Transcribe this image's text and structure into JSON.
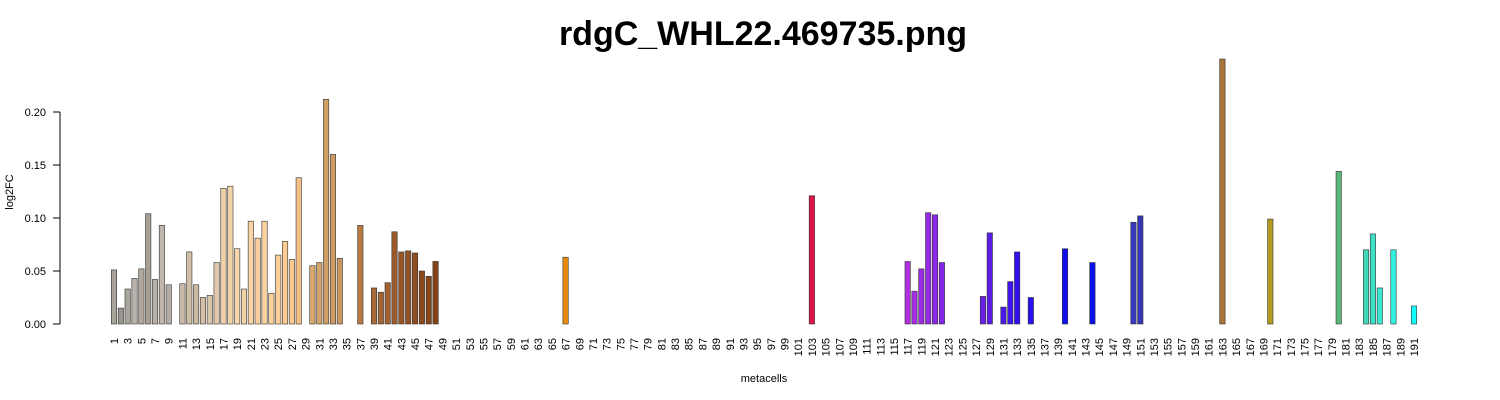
{
  "chart_data": {
    "type": "bar",
    "title": "rdgC_WHL22.469735.png",
    "x_label": "metacells",
    "y_label": "log2FC",
    "categories": [
      "1",
      null,
      "3",
      null,
      "5",
      null,
      "7",
      null,
      "9",
      null,
      "11",
      null,
      "13",
      null,
      "15",
      null,
      "17",
      null,
      "19",
      null,
      "21",
      null,
      "23",
      null,
      "25",
      null,
      "27",
      null,
      "29",
      null,
      "31",
      null,
      "33",
      null,
      "35",
      null,
      "37",
      null,
      "39",
      null,
      "41",
      null,
      "43",
      null,
      "45",
      null,
      "47",
      null,
      "49",
      null,
      "51",
      null,
      "53",
      null,
      "55",
      null,
      "57",
      null,
      "59",
      null,
      "61",
      null,
      "63",
      null,
      "65",
      null,
      "67",
      null,
      "69",
      null,
      "71",
      null,
      "73",
      null,
      "75",
      null,
      "77",
      null,
      "79",
      null,
      "81",
      null,
      "83",
      null,
      "85",
      null,
      "87",
      null,
      "89",
      null,
      "91",
      null,
      "93",
      null,
      "95",
      null,
      "97",
      null,
      "99",
      null,
      "101",
      null,
      "103",
      null,
      "105",
      null,
      "107",
      null,
      "109",
      null,
      "111",
      null,
      "113",
      null,
      "115",
      null,
      "117",
      null,
      "119",
      null,
      "121",
      null,
      "123",
      null,
      "125",
      null,
      "127",
      null,
      "129",
      null,
      "131",
      null,
      "133",
      null,
      "135",
      null,
      "137",
      null,
      "139",
      null,
      "141",
      null,
      "143",
      null,
      "145",
      null,
      "147",
      null,
      "149",
      null,
      "151",
      null,
      "153",
      null,
      "155",
      null,
      "157",
      null,
      "159",
      null,
      "161",
      null,
      "163",
      null,
      "165",
      null,
      "167",
      null,
      "169",
      null,
      "171",
      null,
      "173",
      null,
      "175",
      null,
      "177",
      null,
      "179",
      null,
      "181",
      null,
      "183",
      null,
      "185",
      null,
      "187",
      null,
      "189",
      null,
      "191"
    ],
    "values": [
      0.051,
      0.015,
      0.033,
      0.043,
      0.052,
      0.104,
      0.042,
      0.093,
      0.037,
      0,
      0.038,
      0.068,
      0.037,
      0.025,
      0.027,
      0.058,
      0.128,
      0.13,
      0.071,
      0.033,
      0.097,
      0.081,
      0.097,
      0.029,
      0.065,
      0.078,
      0.061,
      0.138,
      0,
      0.055,
      0.058,
      0.212,
      0.16,
      0.062,
      0,
      0,
      0.093,
      0,
      0.034,
      0.03,
      0.039,
      0.087,
      0.068,
      0.069,
      0.067,
      0.05,
      0.045,
      0.059,
      0,
      0,
      0,
      0,
      0,
      0,
      0,
      0,
      0,
      0,
      0,
      0,
      0,
      0,
      0,
      0,
      0,
      0,
      0.063,
      0,
      0,
      0,
      0,
      0,
      0,
      0,
      0,
      0,
      0,
      0,
      0,
      0,
      0,
      0,
      0,
      0,
      0,
      0,
      0,
      0,
      0,
      0,
      0,
      0,
      0,
      0,
      0,
      0,
      0,
      0,
      0,
      0,
      0,
      0,
      0.121,
      0,
      0,
      0,
      0,
      0,
      0,
      0,
      0,
      0,
      0,
      0,
      0,
      0,
      0.059,
      0.031,
      0.052,
      0.105,
      0.103,
      0.058,
      0,
      0,
      0,
      0,
      0,
      0.026,
      0.086,
      0,
      0.016,
      0.04,
      0.068,
      0,
      0.025,
      0,
      0,
      0,
      0,
      0.071,
      0,
      0,
      0,
      0.058,
      0,
      0,
      0,
      0,
      0,
      0.096,
      0.102,
      0,
      0,
      0,
      0,
      0,
      0,
      0,
      0,
      0,
      0,
      0,
      0.25,
      0,
      0,
      0,
      0,
      0,
      0,
      0.099,
      0,
      0,
      0,
      0,
      0,
      0,
      0,
      0,
      0,
      0.144,
      0,
      0,
      0,
      0.07,
      0.085,
      0.034,
      0,
      0.07,
      0,
      0,
      0.017
    ],
    "colors": [
      "#a9a49c",
      "#9a958e",
      "#aaa49e",
      "#b8b2aa",
      "#b0a89e",
      "#a8a096",
      "#bab2a8",
      "#c0b6ab",
      "#b5ada4",
      "#888",
      "#c8b8a4",
      "#d0bea6",
      "#cbb9a2",
      "#d4c0a8",
      "#d8c4aa",
      "#e0c8a8",
      "#f0d0a8",
      "#f2d4aa",
      "#f4d6ae",
      "#f0d2a6",
      "#f6d4a4",
      "#f8d0a0",
      "#fad2a0",
      "#fbd09a",
      "#fcce98",
      "#fccc94",
      "#fcc890",
      "#f4c088",
      "#888",
      "#d8a870",
      "#d4a46c",
      "#d0a068",
      "#cc9c64",
      "#c89860",
      "#888",
      "#888",
      "#b87a40",
      "#888",
      "#a86a38",
      "#a46434",
      "#a06030",
      "#9a5a2c",
      "#965628",
      "#925224",
      "#8e4e20",
      "#8a4a1c",
      "#864618",
      "#824214",
      "#888",
      "#888",
      "#888",
      "#888",
      "#888",
      "#888",
      "#888",
      "#888",
      "#888",
      "#888",
      "#888",
      "#888",
      "#888",
      "#888",
      "#888",
      "#888",
      "#888",
      "#888",
      "#e88a10",
      "#888",
      "#888",
      "#888",
      "#888",
      "#888",
      "#888",
      "#888",
      "#888",
      "#888",
      "#888",
      "#888",
      "#888",
      "#888",
      "#888",
      "#888",
      "#888",
      "#888",
      "#888",
      "#888",
      "#888",
      "#888",
      "#888",
      "#888",
      "#888",
      "#888",
      "#888",
      "#888",
      "#888",
      "#888",
      "#888",
      "#888",
      "#888",
      "#888",
      "#888",
      "#888",
      "#dc1448",
      "#888",
      "#888",
      "#888",
      "#888",
      "#888",
      "#888",
      "#888",
      "#888",
      "#888",
      "#888",
      "#888",
      "#888",
      "#888",
      "#b030e0",
      "#a52ee2",
      "#9c2ce4",
      "#942ae6",
      "#8c28e8",
      "#8426ea",
      "#888",
      "#888",
      "#888",
      "#888",
      "#888",
      "#6a20e8",
      "#5c1ce8",
      "#888",
      "#4c18ea",
      "#4014ec",
      "#3410ee",
      "#888",
      "#2810f0",
      "#888",
      "#888",
      "#888",
      "#888",
      "#1010ee",
      "#888",
      "#888",
      "#888",
      "#0a10ee",
      "#888",
      "#888",
      "#888",
      "#888",
      "#888",
      "#3838c0",
      "#3434b8",
      "#888",
      "#888",
      "#888",
      "#888",
      "#888",
      "#888",
      "#888",
      "#888",
      "#888",
      "#888",
      "#888",
      "#a87438",
      "#888",
      "#888",
      "#888",
      "#888",
      "#888",
      "#888",
      "#b49a20",
      "#888",
      "#888",
      "#888",
      "#888",
      "#888",
      "#888",
      "#888",
      "#888",
      "#888",
      "#58b87c",
      "#888",
      "#888",
      "#888",
      "#40d8b8",
      "#40e0c8",
      "#38e8d0",
      "#888",
      "#30f0e0",
      "#888",
      "#888",
      "#10ffff"
    ],
    "ylim": [
      0,
      0.25
    ],
    "yticks": [
      {
        "value": 0,
        "label": "0.00"
      },
      {
        "value": 0.05,
        "label": "0.05"
      },
      {
        "value": 0.1,
        "label": "0.10"
      },
      {
        "value": 0.15,
        "label": "0.15"
      },
      {
        "value": 0.2,
        "label": "0.20"
      }
    ],
    "grid": false
  }
}
